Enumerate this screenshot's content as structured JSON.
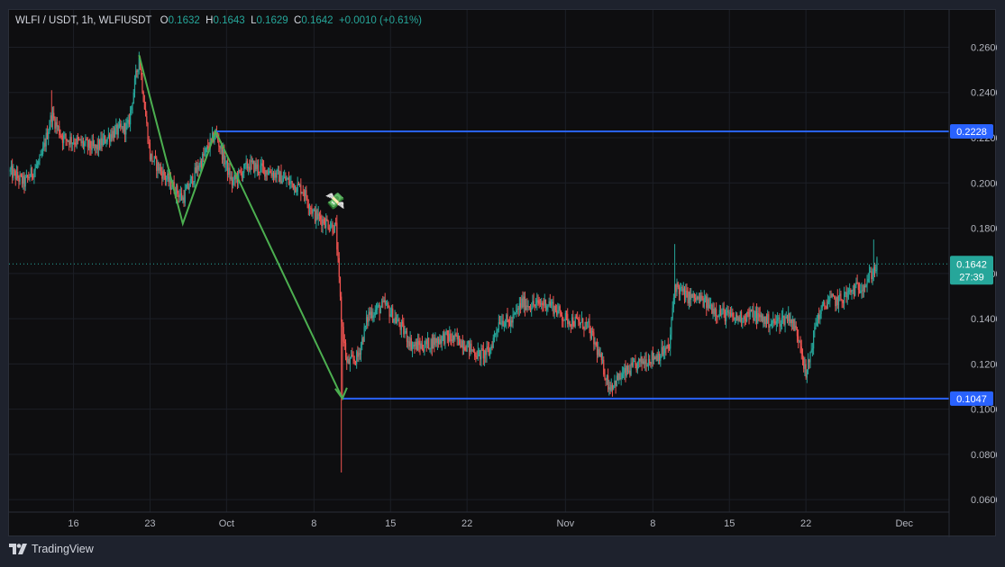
{
  "header": {
    "symbol": "WLFI / USDT, 1h, WLFIUSDT",
    "o_label": "O",
    "o_value": "0.1632",
    "h_label": "H",
    "h_value": "0.1643",
    "l_label": "L",
    "l_value": "0.1629",
    "c_label": "C",
    "c_value": "0.1642",
    "change": "+0.0010 (+0.61%)"
  },
  "footer": {
    "brand": "TradingView",
    "logo_icon": "tradingview-logo-icon"
  },
  "colors": {
    "background": "#0e0e10",
    "up": "#26a69a",
    "down": "#ef5350",
    "level_line": "#2962ff",
    "pattern_line": "#4caf50",
    "axis_text": "#b2b5be"
  },
  "chart_data": {
    "type": "candlestick",
    "y_ticks": [
      "0.2600",
      "0.2400",
      "0.2200",
      "0.2000",
      "0.1800",
      "0.1600",
      "0.1400",
      "0.1200",
      "0.1000",
      "0.0800",
      "0.0600"
    ],
    "y_tick_values": [
      0.26,
      0.24,
      0.22,
      0.2,
      0.18,
      0.16,
      0.14,
      0.12,
      0.1,
      0.08,
      0.06
    ],
    "ylim": [
      0.0545,
      0.2765
    ],
    "x_ticks": [
      {
        "label": "16",
        "day": 16
      },
      {
        "label": "23",
        "day": 23
      },
      {
        "label": "Oct",
        "day": 30
      },
      {
        "label": "8",
        "day": 38
      },
      {
        "label": "15",
        "day": 45
      },
      {
        "label": "22",
        "day": 52
      },
      {
        "label": "Nov",
        "day": 61
      },
      {
        "label": "8",
        "day": 69
      },
      {
        "label": "15",
        "day": 76
      },
      {
        "label": "22",
        "day": 83
      },
      {
        "label": "Dec",
        "day": 92
      }
    ],
    "xlim": [
      10.1,
      96.1
    ],
    "price_path": [
      [
        10.2,
        0.205
      ],
      [
        11.5,
        0.2
      ],
      [
        13.0,
        0.21
      ],
      [
        14.0,
        0.23
      ],
      [
        15.0,
        0.22
      ],
      [
        16.5,
        0.218
      ],
      [
        18.0,
        0.215
      ],
      [
        19.5,
        0.222
      ],
      [
        21.0,
        0.225
      ],
      [
        22.0,
        0.256
      ],
      [
        23.0,
        0.212
      ],
      [
        24.5,
        0.202
      ],
      [
        26.0,
        0.193
      ],
      [
        27.5,
        0.208
      ],
      [
        29.0,
        0.222
      ],
      [
        30.5,
        0.2
      ],
      [
        32.0,
        0.208
      ],
      [
        34.0,
        0.205
      ],
      [
        35.5,
        0.201
      ],
      [
        37.0,
        0.197
      ],
      [
        38.0,
        0.186
      ],
      [
        40.0,
        0.18
      ],
      [
        40.5,
        0.14
      ],
      [
        41.0,
        0.12
      ],
      [
        42.0,
        0.123
      ],
      [
        43.0,
        0.142
      ],
      [
        44.5,
        0.146
      ],
      [
        46.0,
        0.136
      ],
      [
        47.0,
        0.128
      ],
      [
        48.0,
        0.128
      ],
      [
        50.0,
        0.132
      ],
      [
        51.5,
        0.13
      ],
      [
        53.0,
        0.124
      ],
      [
        54.0,
        0.125
      ],
      [
        55.0,
        0.14
      ],
      [
        56.0,
        0.138
      ],
      [
        57.0,
        0.147
      ],
      [
        58.0,
        0.146
      ],
      [
        59.5,
        0.147
      ],
      [
        61.0,
        0.14
      ],
      [
        63.0,
        0.137
      ],
      [
        64.0,
        0.125
      ],
      [
        65.0,
        0.11
      ],
      [
        66.5,
        0.116
      ],
      [
        68.0,
        0.121
      ],
      [
        69.5,
        0.124
      ],
      [
        70.5,
        0.127
      ],
      [
        71.0,
        0.155
      ],
      [
        72.0,
        0.15
      ],
      [
        73.5,
        0.148
      ],
      [
        75.0,
        0.143
      ],
      [
        76.5,
        0.14
      ],
      [
        78.0,
        0.142
      ],
      [
        80.0,
        0.138
      ],
      [
        81.5,
        0.141
      ],
      [
        82.5,
        0.13
      ],
      [
        83.0,
        0.114
      ],
      [
        84.0,
        0.14
      ],
      [
        85.0,
        0.148
      ],
      [
        86.0,
        0.148
      ],
      [
        87.5,
        0.153
      ],
      [
        88.5,
        0.156
      ],
      [
        89.5,
        0.164
      ]
    ],
    "spikes": [
      {
        "day": 14.0,
        "high": 0.241
      },
      {
        "day": 22.0,
        "high": 0.258
      },
      {
        "day": 40.5,
        "low": 0.072
      },
      {
        "day": 40.6,
        "low": 0.104
      },
      {
        "day": 65.0,
        "low": 0.106
      },
      {
        "day": 71.0,
        "high": 0.173
      },
      {
        "day": 83.0,
        "low": 0.113
      },
      {
        "day": 89.2,
        "high": 0.175
      }
    ],
    "levels": [
      {
        "value": 0.2228,
        "label": "0.2228",
        "start_day": 29.0
      },
      {
        "value": 0.1047,
        "label": "0.1047",
        "start_day": 40.6
      }
    ],
    "pattern": [
      [
        22.0,
        0.2565
      ],
      [
        26.0,
        0.182
      ],
      [
        29.0,
        0.2228
      ],
      [
        40.6,
        0.1047
      ]
    ],
    "last_price": {
      "value": 0.1642,
      "label": "0.1642",
      "countdown": "27:39"
    },
    "annotation_emoji": "💸",
    "annotation_point": {
      "day": 39.0,
      "value": 0.1895
    }
  }
}
